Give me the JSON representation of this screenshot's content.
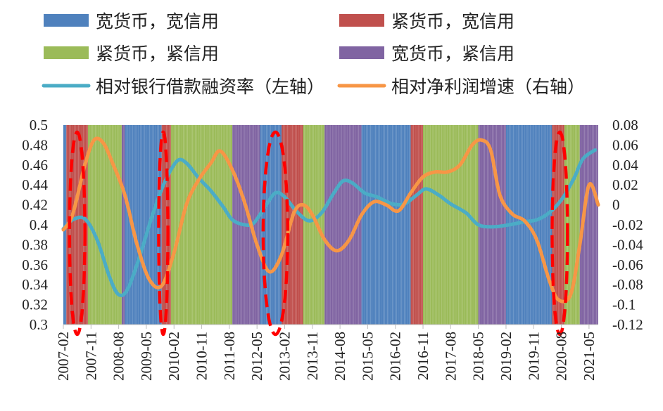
{
  "chart_data": {
    "type": "line",
    "x_labels": [
      "2007-02",
      "2007-11",
      "2008-08",
      "2009-05",
      "2010-02",
      "2010-11",
      "2011-08",
      "2012-05",
      "2013-02",
      "2013-11",
      "2014-08",
      "2015-05",
      "2016-02",
      "2016-11",
      "2017-08",
      "2018-05",
      "2019-02",
      "2019-11",
      "2020-08",
      "2021-05"
    ],
    "x_range": [
      "2007-02",
      "2021-08"
    ],
    "y_left": {
      "min": 0.3,
      "max": 0.5,
      "step": 0.02,
      "tick_labels": [
        "0.3",
        "0.32",
        "0.34",
        "0.36",
        "0.38",
        "0.4",
        "0.42",
        "0.44",
        "0.46",
        "0.48",
        "0.5"
      ]
    },
    "y_right": {
      "min": -0.12,
      "max": 0.08,
      "step": 0.02,
      "tick_labels": [
        "-0.12",
        "-0.1",
        "-0.08",
        "-0.06",
        "-0.04",
        "-0.02",
        "0",
        "0.02",
        "0.04",
        "0.06",
        "0.08"
      ]
    },
    "regime_colors": {
      "loose_money_loose_credit": "#4f81bd",
      "tight_money_loose_credit": "#c0504d",
      "tight_money_tight_credit": "#9bbb59",
      "loose_money_tight_credit": "#8064a2"
    },
    "regimes": [
      {
        "start": "2007-02",
        "end": "2007-03",
        "type": "loose_money_loose_credit"
      },
      {
        "start": "2007-03",
        "end": "2007-10",
        "type": "tight_money_loose_credit"
      },
      {
        "start": "2007-10",
        "end": "2008-09",
        "type": "tight_money_tight_credit"
      },
      {
        "start": "2008-09",
        "end": "2008-10",
        "type": "loose_money_tight_credit"
      },
      {
        "start": "2008-10",
        "end": "2009-10",
        "type": "loose_money_loose_credit"
      },
      {
        "start": "2009-10",
        "end": "2010-01",
        "type": "tight_money_loose_credit"
      },
      {
        "start": "2010-01",
        "end": "2011-09",
        "type": "tight_money_tight_credit"
      },
      {
        "start": "2011-09",
        "end": "2012-06",
        "type": "loose_money_tight_credit"
      },
      {
        "start": "2012-06",
        "end": "2013-01",
        "type": "loose_money_loose_credit"
      },
      {
        "start": "2013-01",
        "end": "2013-08",
        "type": "tight_money_loose_credit"
      },
      {
        "start": "2013-08",
        "end": "2014-03",
        "type": "tight_money_tight_credit"
      },
      {
        "start": "2014-03",
        "end": "2015-03",
        "type": "loose_money_tight_credit"
      },
      {
        "start": "2015-03",
        "end": "2016-07",
        "type": "loose_money_loose_credit"
      },
      {
        "start": "2016-07",
        "end": "2016-11",
        "type": "tight_money_loose_credit"
      },
      {
        "start": "2016-11",
        "end": "2018-05",
        "type": "tight_money_tight_credit"
      },
      {
        "start": "2018-05",
        "end": "2019-02",
        "type": "loose_money_tight_credit"
      },
      {
        "start": "2019-02",
        "end": "2020-05",
        "type": "loose_money_loose_credit"
      },
      {
        "start": "2020-05",
        "end": "2020-09",
        "type": "tight_money_loose_credit"
      },
      {
        "start": "2020-09",
        "end": "2021-02",
        "type": "tight_money_tight_credit"
      },
      {
        "start": "2021-02",
        "end": "2021-08",
        "type": "loose_money_tight_credit"
      }
    ],
    "series": [
      {
        "name": "相对银行借款融资率（左轴）",
        "axis": "left",
        "color": "#4bacc6",
        "points": [
          [
            "2007-02",
            0.396
          ],
          [
            "2007-05",
            0.405
          ],
          [
            "2007-09",
            0.406
          ],
          [
            "2008-01",
            0.385
          ],
          [
            "2008-05",
            0.348
          ],
          [
            "2008-08",
            0.33
          ],
          [
            "2008-11",
            0.336
          ],
          [
            "2009-03",
            0.37
          ],
          [
            "2009-07",
            0.41
          ],
          [
            "2009-11",
            0.443
          ],
          [
            "2010-03",
            0.464
          ],
          [
            "2010-06",
            0.462
          ],
          [
            "2010-10",
            0.447
          ],
          [
            "2011-02",
            0.434
          ],
          [
            "2011-06",
            0.418
          ],
          [
            "2011-09",
            0.405
          ],
          [
            "2012-01",
            0.4
          ],
          [
            "2012-04",
            0.402
          ],
          [
            "2012-08",
            0.42
          ],
          [
            "2012-11",
            0.432
          ],
          [
            "2013-02",
            0.428
          ],
          [
            "2013-06",
            0.413
          ],
          [
            "2013-10",
            0.404
          ],
          [
            "2014-02",
            0.412
          ],
          [
            "2014-06",
            0.432
          ],
          [
            "2014-09",
            0.444
          ],
          [
            "2014-12",
            0.442
          ],
          [
            "2015-04",
            0.432
          ],
          [
            "2015-08",
            0.428
          ],
          [
            "2016-01",
            0.421
          ],
          [
            "2016-05",
            0.421
          ],
          [
            "2016-09",
            0.43
          ],
          [
            "2016-12",
            0.436
          ],
          [
            "2017-04",
            0.43
          ],
          [
            "2017-08",
            0.421
          ],
          [
            "2018-01",
            0.412
          ],
          [
            "2018-05",
            0.4
          ],
          [
            "2018-10",
            0.398
          ],
          [
            "2019-03",
            0.4
          ],
          [
            "2019-08",
            0.403
          ],
          [
            "2019-12",
            0.405
          ],
          [
            "2020-04",
            0.412
          ],
          [
            "2020-08",
            0.425
          ],
          [
            "2020-12",
            0.446
          ],
          [
            "2021-03",
            0.466
          ],
          [
            "2021-07",
            0.475
          ]
        ]
      },
      {
        "name": "相对净利润增速（右轴）",
        "axis": "right",
        "color": "#f79646",
        "points": [
          [
            "2007-02",
            -0.025
          ],
          [
            "2007-05",
            -0.01
          ],
          [
            "2007-09",
            0.04
          ],
          [
            "2007-12",
            0.065
          ],
          [
            "2008-03",
            0.062
          ],
          [
            "2008-06",
            0.042
          ],
          [
            "2008-10",
            0.01
          ],
          [
            "2009-02",
            -0.04
          ],
          [
            "2009-06",
            -0.075
          ],
          [
            "2009-10",
            -0.081
          ],
          [
            "2010-02",
            -0.048
          ],
          [
            "2010-06",
            0.0
          ],
          [
            "2010-10",
            0.025
          ],
          [
            "2011-02",
            0.042
          ],
          [
            "2011-05",
            0.054
          ],
          [
            "2011-09",
            0.035
          ],
          [
            "2012-01",
            0.002
          ],
          [
            "2012-05",
            -0.04
          ],
          [
            "2012-09",
            -0.067
          ],
          [
            "2013-01",
            -0.05
          ],
          [
            "2013-05",
            -0.008
          ],
          [
            "2013-08",
            0.0
          ],
          [
            "2013-11",
            -0.01
          ],
          [
            "2014-03",
            -0.035
          ],
          [
            "2014-07",
            -0.046
          ],
          [
            "2014-11",
            -0.035
          ],
          [
            "2015-03",
            -0.01
          ],
          [
            "2015-07",
            0.003
          ],
          [
            "2015-11",
            0.0
          ],
          [
            "2016-03",
            -0.006
          ],
          [
            "2016-07",
            0.012
          ],
          [
            "2016-11",
            0.028
          ],
          [
            "2017-03",
            0.033
          ],
          [
            "2017-07",
            0.033
          ],
          [
            "2017-11",
            0.04
          ],
          [
            "2018-03",
            0.06
          ],
          [
            "2018-06",
            0.065
          ],
          [
            "2018-09",
            0.055
          ],
          [
            "2018-12",
            0.01
          ],
          [
            "2019-04",
            -0.009
          ],
          [
            "2019-08",
            -0.016
          ],
          [
            "2019-12",
            -0.035
          ],
          [
            "2020-04",
            -0.075
          ],
          [
            "2020-07",
            -0.095
          ],
          [
            "2020-11",
            -0.09
          ],
          [
            "2021-02",
            -0.04
          ],
          [
            "2021-05",
            0.02
          ],
          [
            "2021-08",
            0.0
          ]
        ]
      }
    ],
    "legend": [
      {
        "label": "宽货币，宽信用",
        "kind": "swatch",
        "color": "#4f81bd"
      },
      {
        "label": "紧货币，宽信用",
        "kind": "swatch",
        "color": "#c0504d"
      },
      {
        "label": "紧货币，紧信用",
        "kind": "swatch",
        "color": "#9bbb59"
      },
      {
        "label": "宽货币，紧信用",
        "kind": "swatch",
        "color": "#8064a2"
      },
      {
        "label": "相对银行借款融资率（左轴）",
        "kind": "line",
        "color": "#4bacc6"
      },
      {
        "label": "相对净利润增速（右轴）",
        "kind": "line",
        "color": "#f79646"
      }
    ],
    "highlights": [
      {
        "start": "2007-04",
        "end": "2007-09",
        "color": "#ff0000"
      },
      {
        "start": "2009-09",
        "end": "2009-12",
        "color": "#ff0000"
      },
      {
        "start": "2012-07",
        "end": "2013-03",
        "color": "#ff0000"
      },
      {
        "start": "2020-05",
        "end": "2020-10",
        "color": "#ff0000"
      }
    ]
  }
}
